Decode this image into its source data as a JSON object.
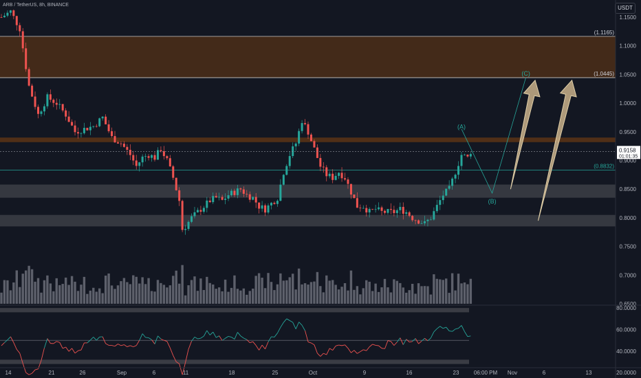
{
  "header": {
    "symbol": "ARB / TetherUS, 8h, BINANCE",
    "currency": "USDT"
  },
  "colors": {
    "background": "#131722",
    "up": "#26a69a",
    "down": "#ef5350",
    "zone": "#6b3a12",
    "grey_band": "#3a3c44",
    "arrow": "#c9b08a",
    "rsi_up": "#26a69a",
    "rsi_down": "#ef5350",
    "label_bg": "#ffffff"
  },
  "chart_data": [
    {
      "type": "candlestick",
      "title": "ARB / TetherUS, 8h, BINANCE",
      "ylim": [
        0.65,
        1.18
      ],
      "y_ticks": [
        "1.1500",
        "1.1000",
        "1.0500",
        "1.0000",
        "0.9500",
        "0.9000",
        "0.8500",
        "0.8000",
        "0.7500",
        "0.7000",
        "0.6500"
      ],
      "x_ticks": [
        "14",
        "21",
        "26",
        "Sep",
        "6",
        "11",
        "18",
        "25",
        "Oct",
        "9",
        "16",
        "23",
        "06:00 PM",
        "Nov",
        "6",
        "13"
      ],
      "price_path": [
        [
          0,
          1.15
        ],
        [
          3,
          1.16
        ],
        [
          6,
          1.13
        ],
        [
          9,
          1.03
        ],
        [
          12,
          0.98
        ],
        [
          15,
          1.01
        ],
        [
          18,
          1.0
        ],
        [
          21,
          0.98
        ],
        [
          24,
          0.95
        ],
        [
          27,
          0.955
        ],
        [
          30,
          0.96
        ],
        [
          33,
          0.975
        ],
        [
          36,
          0.94
        ],
        [
          39,
          0.93
        ],
        [
          42,
          0.91
        ],
        [
          44,
          0.89
        ],
        [
          46,
          0.905
        ],
        [
          48,
          0.91
        ],
        [
          50,
          0.905
        ],
        [
          52,
          0.92
        ],
        [
          54,
          0.9
        ],
        [
          56,
          0.87
        ],
        [
          58,
          0.83
        ],
        [
          59,
          0.78
        ],
        [
          60,
          0.785
        ],
        [
          62,
          0.8
        ],
        [
          64,
          0.81
        ],
        [
          66,
          0.82
        ],
        [
          68,
          0.83
        ],
        [
          70,
          0.835
        ],
        [
          72,
          0.83
        ],
        [
          74,
          0.84
        ],
        [
          76,
          0.845
        ],
        [
          78,
          0.85
        ],
        [
          80,
          0.84
        ],
        [
          82,
          0.835
        ],
        [
          84,
          0.82
        ],
        [
          86,
          0.815
        ],
        [
          88,
          0.825
        ],
        [
          90,
          0.835
        ],
        [
          92,
          0.88
        ],
        [
          94,
          0.91
        ],
        [
          96,
          0.93
        ],
        [
          98,
          0.97
        ],
        [
          100,
          0.95
        ],
        [
          102,
          0.92
        ],
        [
          104,
          0.89
        ],
        [
          106,
          0.875
        ],
        [
          108,
          0.87
        ],
        [
          110,
          0.88
        ],
        [
          112,
          0.87
        ],
        [
          114,
          0.845
        ],
        [
          116,
          0.82
        ],
        [
          118,
          0.82
        ],
        [
          120,
          0.81
        ],
        [
          122,
          0.815
        ],
        [
          124,
          0.81
        ],
        [
          126,
          0.81
        ],
        [
          128,
          0.81
        ],
        [
          130,
          0.815
        ],
        [
          132,
          0.81
        ],
        [
          134,
          0.8
        ],
        [
          136,
          0.795
        ],
        [
          138,
          0.79
        ],
        [
          140,
          0.8
        ],
        [
          142,
          0.82
        ],
        [
          144,
          0.84
        ],
        [
          146,
          0.85
        ],
        [
          148,
          0.88
        ],
        [
          150,
          0.91
        ],
        [
          152,
          0.905
        ],
        [
          153,
          0.9158
        ]
      ],
      "last_price": "0.9158",
      "countdown": "01:01:35",
      "levels": [
        {
          "label": "(1.1165)",
          "value": 1.1165
        },
        {
          "label": "(1.0445)",
          "value": 1.0445
        },
        {
          "label": "(0.8832)",
          "value": 0.8832
        }
      ],
      "resistance_zone": [
        1.0445,
        1.1165
      ],
      "thin_zone": [
        0.932,
        0.94
      ],
      "support_bands": [
        [
          0.835,
          0.858
        ],
        [
          0.785,
          0.805
        ]
      ],
      "wave_labels": [
        {
          "label": "(A)",
          "x": 150,
          "y": 0.955
        },
        {
          "label": "(B)",
          "x": 160,
          "y": 0.825
        },
        {
          "label": "(C)",
          "x": 171,
          "y": 1.048
        }
      ],
      "projection_path": [
        [
          150,
          0.955
        ],
        [
          160,
          0.843
        ],
        [
          171,
          1.045
        ]
      ],
      "arrows": [
        {
          "from": [
            166,
            0.85
          ],
          "to": [
            174,
            1.04
          ]
        },
        {
          "from": [
            175,
            0.795
          ],
          "to": [
            186,
            1.04
          ]
        }
      ]
    },
    {
      "type": "bar",
      "title": "Volume",
      "note": "relative volume bars per candle"
    },
    {
      "type": "line",
      "title": "RSI",
      "ylim": [
        15,
        82
      ],
      "y_ticks": [
        "80.0000",
        "60.0000",
        "40.0000",
        "20.0000"
      ],
      "bands": [
        [
          28,
          32
        ],
        [
          76,
          80
        ]
      ],
      "mid_line": 50
    }
  ]
}
